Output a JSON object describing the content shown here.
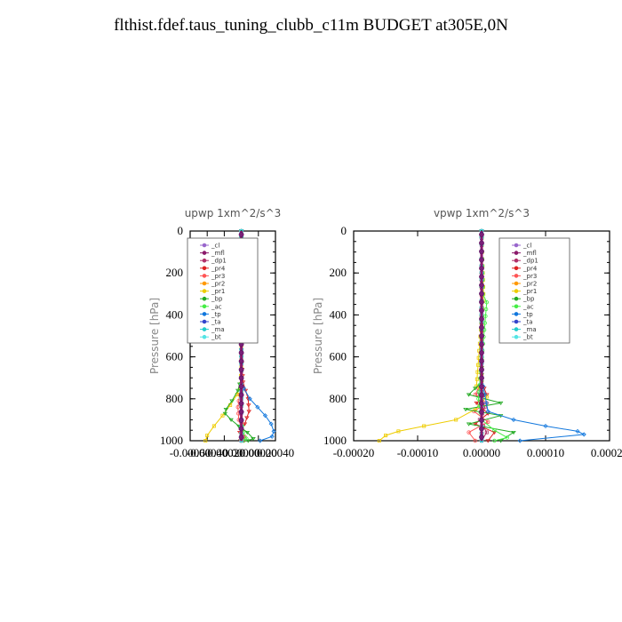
{
  "title": "flthist.fdef.taus_tuning_clubb_c11m  BUDGET at305E,0N",
  "chart_data": [
    {
      "type": "line",
      "title": "upwp   1xm^2/s^3",
      "ylabel": "Pressure [hPa]",
      "xlim": [
        -0.0006,
        0.0004
      ],
      "ylim": [
        0,
        1000
      ],
      "y_inverted": true,
      "xticks": [
        "-0.00060",
        "-0.00040",
        "-0.00020",
        "0.00000",
        "0.00020",
        "0.00040"
      ],
      "xtick_values": [
        -0.0006,
        -0.0004,
        -0.0002,
        0.0,
        0.0002,
        0.0004
      ],
      "yticks": [
        "0",
        "200",
        "400",
        "600",
        "800",
        "1000"
      ],
      "ytick_values": [
        0,
        200,
        400,
        600,
        800,
        1000
      ],
      "legend_position": "top-right",
      "series": [
        {
          "name": "_cl",
          "color": "#9966cc",
          "x": [
            0,
            0,
            0,
            0,
            0,
            0
          ],
          "y": [
            0,
            200,
            400,
            600,
            800,
            1000
          ]
        },
        {
          "name": "_mfl",
          "color": "#8b1a6b",
          "x": [
            0,
            0,
            0,
            0,
            0,
            0
          ],
          "y": [
            0,
            200,
            400,
            600,
            800,
            1000
          ]
        },
        {
          "name": "_dp1",
          "color": "#b0306a",
          "x": [
            0,
            0,
            0,
            0,
            0,
            -1e-05,
            1e-05,
            0
          ],
          "y": [
            0,
            200,
            400,
            600,
            800,
            940,
            980,
            1000
          ]
        },
        {
          "name": "_pr4",
          "color": "#dd2222",
          "x": [
            0,
            0,
            2e-05,
            8e-05,
            9e-05,
            4e-05,
            -2e-05,
            -1e-05
          ],
          "y": [
            0,
            600,
            720,
            800,
            860,
            920,
            960,
            1000
          ]
        },
        {
          "name": "_pr3",
          "color": "#ff5555",
          "x": [
            0,
            0,
            -2e-05,
            -4e-05,
            -3e-05,
            1e-05,
            4e-05,
            2e-05
          ],
          "y": [
            0,
            700,
            780,
            840,
            900,
            950,
            980,
            1000
          ]
        },
        {
          "name": "_pr2",
          "color": "#ff9900",
          "x": [
            0,
            0,
            0,
            0,
            0,
            0
          ],
          "y": [
            0,
            200,
            400,
            600,
            800,
            1000
          ]
        },
        {
          "name": "_pr1",
          "color": "#eecc00",
          "x": [
            0,
            0,
            -1e-05,
            -5e-05,
            -0.00013,
            -0.00022,
            -0.00032,
            -0.0004,
            -0.00042
          ],
          "y": [
            0,
            650,
            730,
            780,
            830,
            880,
            930,
            975,
            1000
          ]
        },
        {
          "name": "_bp",
          "color": "#22aa22",
          "x": [
            0,
            0,
            -4e-05,
            -0.00011,
            -0.00018,
            -0.00019,
            -0.00012,
            -3e-05,
            7e-05,
            0.00014,
            8e-05
          ],
          "y": [
            0,
            700,
            760,
            810,
            850,
            870,
            900,
            930,
            960,
            990,
            1000
          ]
        },
        {
          "name": "_ac",
          "color": "#44ee44",
          "x": [
            0,
            0,
            0,
            0,
            0,
            2e-05,
            6e-05,
            3e-05
          ],
          "y": [
            0,
            200,
            400,
            600,
            900,
            960,
            990,
            1000
          ]
        },
        {
          "name": "_tp",
          "color": "#1177dd",
          "x": [
            0,
            0,
            3e-05,
            0.0001,
            0.00019,
            0.00028,
            0.00035,
            0.00038,
            0.00036,
            0.00022
          ],
          "y": [
            0,
            700,
            750,
            800,
            840,
            880,
            920,
            955,
            980,
            1000
          ]
        },
        {
          "name": "_ta",
          "color": "#3344cc",
          "x": [
            0,
            0,
            0,
            0,
            0,
            0
          ],
          "y": [
            0,
            200,
            400,
            600,
            800,
            1000
          ]
        },
        {
          "name": "_ma",
          "color": "#22cccc",
          "x": [
            0,
            0,
            0,
            0,
            0,
            0
          ],
          "y": [
            0,
            200,
            400,
            600,
            800,
            1000
          ]
        },
        {
          "name": "_bt",
          "color": "#55e5e5",
          "x": [
            0,
            0,
            0,
            0,
            0,
            0
          ],
          "y": [
            0,
            200,
            400,
            600,
            800,
            1000
          ]
        }
      ]
    },
    {
      "type": "line",
      "title": "vpwp   1xm^2/s^3",
      "ylabel": "Pressure [hPa]",
      "xlim": [
        -0.0002,
        0.0002
      ],
      "ylim": [
        0,
        1000
      ],
      "y_inverted": true,
      "xticks": [
        "-0.00020",
        "-0.00010",
        "0.00000",
        "0.00010",
        "0.00020"
      ],
      "xtick_values": [
        -0.0002,
        -0.0001,
        0.0,
        0.0001,
        0.0002
      ],
      "yticks": [
        "0",
        "200",
        "400",
        "600",
        "800",
        "1000"
      ],
      "ytick_values": [
        0,
        200,
        400,
        600,
        800,
        1000
      ],
      "legend_position": "top-right",
      "series": [
        {
          "name": "_cl",
          "color": "#9966cc",
          "x": [
            0,
            0,
            0,
            0,
            0,
            0
          ],
          "y": [
            0,
            200,
            400,
            600,
            800,
            1000
          ]
        },
        {
          "name": "_mfl",
          "color": "#8b1a6b",
          "x": [
            0,
            0,
            0,
            0,
            0,
            0
          ],
          "y": [
            0,
            200,
            400,
            600,
            800,
            1000
          ]
        },
        {
          "name": "_dp1",
          "color": "#b0306a",
          "x": [
            0,
            0,
            -5e-06,
            5e-06,
            -3e-06,
            8e-06,
            0
          ],
          "y": [
            0,
            700,
            780,
            840,
            900,
            960,
            1000
          ]
        },
        {
          "name": "_pr4",
          "color": "#dd2222",
          "x": [
            0,
            0,
            8e-06,
            -8e-06,
            1e-05,
            -1e-05,
            2e-05,
            1e-05
          ],
          "y": [
            0,
            720,
            780,
            820,
            870,
            920,
            960,
            1000
          ]
        },
        {
          "name": "_pr3",
          "color": "#ff5555",
          "x": [
            0,
            0,
            -1e-05,
            8e-06,
            -1.2e-05,
            1e-05,
            -2e-05,
            -1e-05
          ],
          "y": [
            0,
            720,
            780,
            820,
            860,
            910,
            960,
            1000
          ]
        },
        {
          "name": "_pr2",
          "color": "#ff9900",
          "x": [
            0,
            0,
            0,
            0,
            0,
            0
          ],
          "y": [
            0,
            200,
            400,
            600,
            800,
            1000
          ]
        },
        {
          "name": "_pr1",
          "color": "#eecc00",
          "x": [
            0,
            3e-06,
            -8e-06,
            8e-06,
            -1e-05,
            -4e-05,
            -9e-05,
            -0.00013,
            -0.00015,
            -0.00016
          ],
          "y": [
            0,
            300,
            740,
            790,
            850,
            900,
            930,
            955,
            975,
            1000
          ]
        },
        {
          "name": "_bp",
          "color": "#22aa22",
          "x": [
            0,
            0,
            -2e-05,
            3e-05,
            -2.5e-05,
            3e-05,
            -2e-05,
            5e-05,
            3e-05
          ],
          "y": [
            0,
            720,
            780,
            820,
            850,
            880,
            920,
            960,
            1000
          ]
        },
        {
          "name": "_ac",
          "color": "#44ee44",
          "x": [
            0,
            2e-06,
            8e-06,
            -5e-06,
            0,
            2e-05,
            4e-05,
            2e-05
          ],
          "y": [
            0,
            300,
            340,
            800,
            900,
            950,
            985,
            1000
          ]
        },
        {
          "name": "_tp",
          "color": "#1177dd",
          "x": [
            0,
            0,
            5e-06,
            1e-05,
            5e-05,
            0.0001,
            0.00015,
            0.00016,
            6e-05
          ],
          "y": [
            0,
            700,
            780,
            860,
            900,
            930,
            955,
            970,
            1000
          ]
        },
        {
          "name": "_ta",
          "color": "#3344cc",
          "x": [
            0,
            0,
            0,
            0,
            0,
            0
          ],
          "y": [
            0,
            200,
            400,
            600,
            800,
            1000
          ]
        },
        {
          "name": "_ma",
          "color": "#22cccc",
          "x": [
            0,
            0,
            0,
            0,
            0,
            0
          ],
          "y": [
            0,
            200,
            400,
            600,
            800,
            1000
          ]
        },
        {
          "name": "_bt",
          "color": "#55e5e5",
          "x": [
            0,
            0,
            0,
            0,
            0,
            0
          ],
          "y": [
            0,
            200,
            400,
            600,
            800,
            1000
          ]
        }
      ]
    }
  ]
}
